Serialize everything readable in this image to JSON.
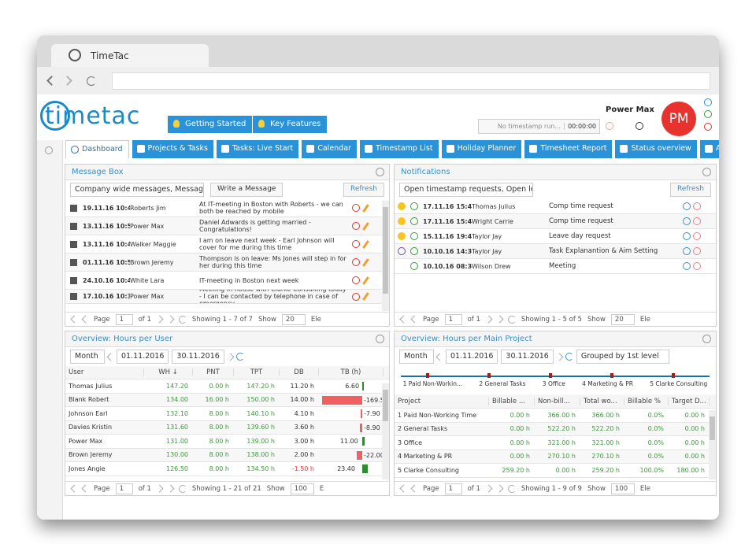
{
  "browser": {
    "tab_title": "TimeTac"
  },
  "header": {
    "logo": "timetac",
    "buttons": [
      "Getting Started",
      "Key Features"
    ],
    "timestamp_status": "No timestamp run...",
    "timer": "00:00:00",
    "user_name": "Power Max",
    "avatar": "PM"
  },
  "nav": {
    "tabs": [
      "Dashboard",
      "Projects & Tasks",
      "Tasks: Live Start",
      "Calendar",
      "Timestamp List",
      "Holiday Planner",
      "Timesheet Report",
      "Status overview",
      "Acti"
    ]
  },
  "message_box": {
    "title": "Message Box",
    "filter": "Company wide messages, Message:",
    "write_button": "Write a Message",
    "refresh": "Refresh",
    "messages": [
      {
        "date": "19.11.16 10:46",
        "author": "Roberts Jim",
        "text": "At IT-meeting in Boston with Roberts - we can both be reached by mobile"
      },
      {
        "date": "13.11.16 10:57",
        "author": "Power Max",
        "text": "Daniel Adwards is getting married - Congratulations!"
      },
      {
        "date": "13.11.16 10:40",
        "author": "Walker Maggie",
        "text": "I am on leave next week - Earl Johnson will cover for me during this time"
      },
      {
        "date": "01.11.16 10:51",
        "author": "Brown Jeremy",
        "text": "Thompson is on leave: Ms Jones will step in for her during this time"
      },
      {
        "date": "24.10.16 10:44",
        "author": "White Lara",
        "text": "IT-meeting in Boston next week"
      },
      {
        "date": "17.10.16 10:38",
        "author": "Power Max",
        "text": "Meeting in-house with Clarke Consulting today - I can be contacted by telephone in case of emergency"
      }
    ],
    "pager": {
      "page_label": "Page",
      "page": "1",
      "of": "of 1",
      "showing": "Showing 1 - 7 of 7",
      "show": "Show",
      "size": "20",
      "extra": "Ele"
    }
  },
  "notifications": {
    "title": "Notifications",
    "filter": "Open timestamp requests, Open le:",
    "refresh": "Refresh",
    "rows": [
      {
        "date": "17.11.16 15:46",
        "user": "Thomas Julius",
        "type": "Comp time request"
      },
      {
        "date": "17.11.16 15:45",
        "user": "Wright Carrie",
        "type": "Comp time request"
      },
      {
        "date": "15.11.16 19:46",
        "user": "Taylor Jay",
        "type": "Leave day request"
      },
      {
        "date": "10.10.16 14:32",
        "user": "Taylor Jay",
        "type": "Task Explanantion & Aim Setting"
      },
      {
        "date": "10.10.16 08:36",
        "user": "Wilson Drew",
        "type": "Meeting"
      }
    ],
    "pager": {
      "page_label": "Page",
      "page": "1",
      "of": "of 1",
      "showing": "Showing 1 - 5 of 5",
      "show": "Show",
      "size": "20",
      "extra": "Ele"
    }
  },
  "hours_per_user": {
    "title": "Overview: Hours per User",
    "period": "Month",
    "from": "01.11.2016",
    "to": "30.11.2016",
    "columns": [
      "User",
      "WH ↓",
      "PNT",
      "TPT",
      "DB",
      "TB (h)"
    ],
    "rows": [
      [
        "Thomas Julius",
        "147.20",
        "0.00 h",
        "147.20 h",
        "11.20 h",
        "6.60"
      ],
      [
        "Blank Robert",
        "134.00",
        "16.00 h",
        "150.00 h",
        "14.00 h",
        "-169.5"
      ],
      [
        "Johnson Earl",
        "132.10",
        "8.00 h",
        "140.10 h",
        "4.10 h",
        "-7.90"
      ],
      [
        "Davies Kristin",
        "131.60",
        "8.00 h",
        "139.60 h",
        "3.60 h",
        "-8.90"
      ],
      [
        "Power Max",
        "131.00",
        "8.00 h",
        "139.00 h",
        "3.00 h",
        "11.00"
      ],
      [
        "Brown Jeremy",
        "130.00",
        "8.00 h",
        "138.00 h",
        "2.00 h",
        "-22.00"
      ],
      [
        "Jones Angie",
        "126.50",
        "8.00 h",
        "134.50 h",
        "-1.50 h",
        "23.40"
      ]
    ],
    "pager": {
      "page_label": "Page",
      "page": "1",
      "of": "of 1",
      "showing": "Showing 1 - 21 of 21",
      "show": "Show",
      "size": "100",
      "extra": "E"
    }
  },
  "hours_per_project": {
    "title": "Overview: Hours per Main Project",
    "period": "Month",
    "from": "01.11.2016",
    "to": "30.11.2016",
    "grouping": "Grouped by 1st level",
    "chart_labels": [
      "1 Paid Non-Workin...",
      "2 General Tasks",
      "3 Office",
      "4 Marketing & PR",
      "5 Clarke Consulting"
    ],
    "columns": [
      "Project",
      "Billable ...",
      "Non-bill...",
      "Total wo...",
      "Billable %",
      "Target D..."
    ],
    "rows": [
      [
        "1 Paid Non-Working Time",
        "0.00 h",
        "366.00 h",
        "366.00 h",
        "0.0%",
        "0.00 h"
      ],
      [
        "2 General Tasks",
        "0.00 h",
        "522.20 h",
        "522.20 h",
        "0.0%",
        "0.00 h"
      ],
      [
        "3 Office",
        "0.00 h",
        "321.00 h",
        "321.00 h",
        "0.0%",
        "0.00 h"
      ],
      [
        "4 Marketing & PR",
        "0.00 h",
        "270.10 h",
        "270.10 h",
        "0.0%",
        "0.00 h"
      ],
      [
        "5 Clarke Consulting",
        "259.20 h",
        "0.00 h",
        "259.20 h",
        "100.0%",
        "180.00 h"
      ]
    ],
    "pager": {
      "page_label": "Page",
      "page": "1",
      "of": "of 1",
      "showing": "Showing 1 - 9 of 9",
      "show": "Show",
      "size": "100",
      "extra": "Ele"
    }
  }
}
